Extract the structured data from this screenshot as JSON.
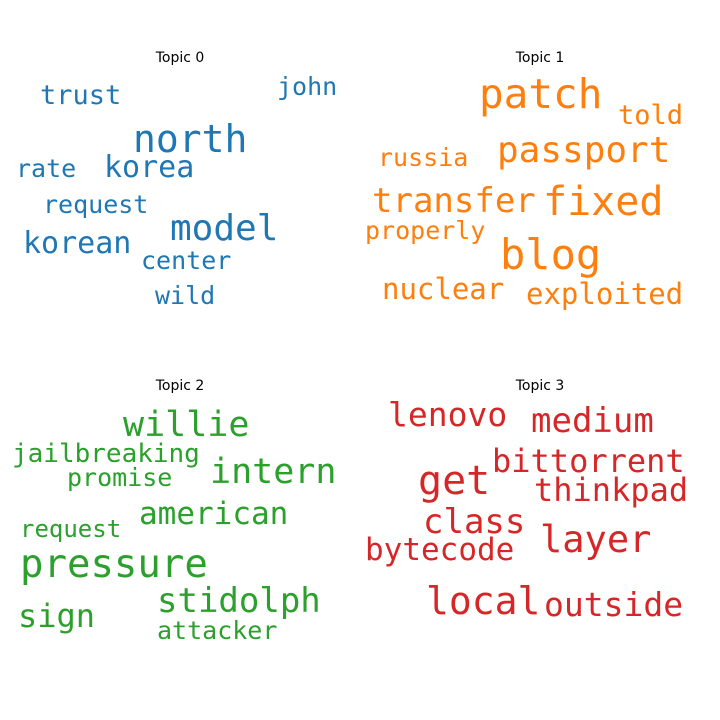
{
  "colors": {
    "topic0": "#1f77b4",
    "topic1": "#ff7f0e",
    "topic2": "#2ca02c",
    "topic3": "#d62728"
  },
  "topics": [
    {
      "title": "Topic 0",
      "words": [
        "north",
        "model",
        "korea",
        "korean",
        "trust",
        "john",
        "request",
        "rate",
        "center",
        "wild"
      ]
    },
    {
      "title": "Topic 1",
      "words": [
        "patch",
        "passport",
        "fixed",
        "blog",
        "transfer",
        "told",
        "russia",
        "properly",
        "nuclear",
        "exploited"
      ]
    },
    {
      "title": "Topic 2",
      "words": [
        "willie",
        "intern",
        "pressure",
        "stidolph",
        "american",
        "jailbreaking",
        "promise",
        "request",
        "sign",
        "attacker"
      ]
    },
    {
      "title": "Topic 3",
      "words": [
        "lenovo",
        "medium",
        "bittorrent",
        "get",
        "thinkpad",
        "class",
        "layer",
        "bytecode",
        "local",
        "outside"
      ]
    }
  ]
}
